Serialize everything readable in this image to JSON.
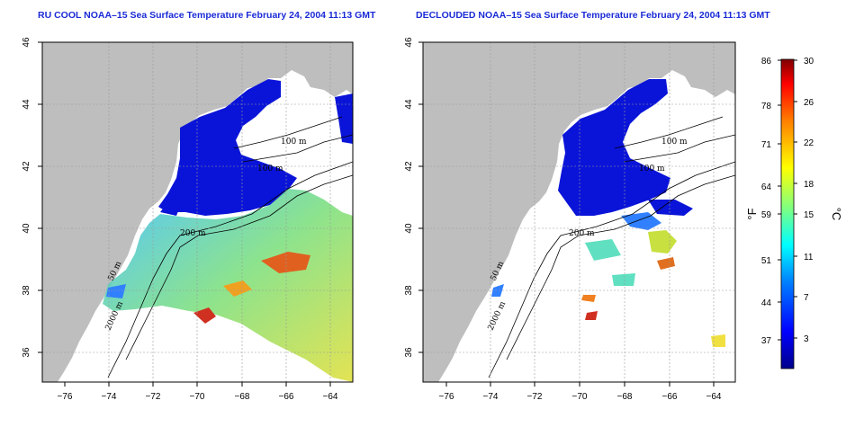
{
  "left_panel": {
    "title": "RU COOL NOAA–15 Sea Surface Temperature February 24, 2004 11:13 GMT",
    "isobaths": [
      "100 m",
      "100 m",
      "200 m",
      "50 m",
      "2000 m"
    ]
  },
  "right_panel": {
    "title": "DECLOUDED NOAA–15 Sea Surface Temperature February 24, 2004 11:13 GMT",
    "isobaths": [
      "100 m",
      "100 m",
      "200 m",
      "50 m",
      "2000 m"
    ]
  },
  "axes": {
    "x_ticks": [
      "−76",
      "−74",
      "−72",
      "−70",
      "−68",
      "−66",
      "−64"
    ],
    "y_ticks": [
      "46",
      "44",
      "42",
      "40",
      "38",
      "36"
    ],
    "lon_range": [
      -77,
      -63
    ],
    "lat_range": [
      35,
      46
    ]
  },
  "colorbar": {
    "f_label": "°F",
    "c_label": "°C",
    "f_ticks": [
      "86",
      "78",
      "71",
      "64",
      "59",
      "51",
      "44",
      "37"
    ],
    "c_ticks": [
      "30",
      "26",
      "22",
      "18",
      "15",
      "11",
      "7",
      "3"
    ],
    "range_c": [
      0,
      30
    ],
    "colors": [
      "#00008b",
      "#0000ff",
      "#0080ff",
      "#00ffff",
      "#80ff80",
      "#ffff00",
      "#ff8000",
      "#ff0000",
      "#800000"
    ]
  },
  "colors": {
    "land": "#bebebe",
    "title": "#1a2ad6"
  }
}
